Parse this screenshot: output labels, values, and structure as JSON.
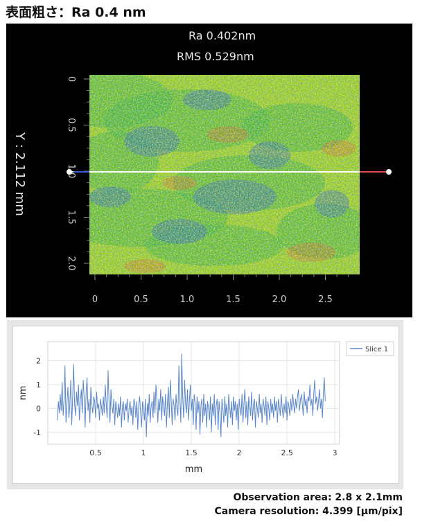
{
  "title": "表面粗さ：Ra 0.4 nm",
  "map": {
    "ra_label": "Ra 0.402nm",
    "rms_label": "RMS 0.529nm",
    "y_axis_title": "Y : 2.112 mm",
    "x_ticks": [
      "0",
      "0.5",
      "1.0",
      "1.5",
      "2.0",
      "2.5"
    ],
    "y_ticks": [
      "0",
      "0.5",
      "1.0",
      "1.5",
      "2.0"
    ],
    "colors": {
      "background": "#000000",
      "base": "#8fcc1e",
      "high": "#e2531f",
      "low": "#1f5fc4",
      "mid": "#2fae3b",
      "slice_line": "#ffffff"
    }
  },
  "chart_data": {
    "type": "line",
    "xlabel": "mm",
    "ylabel": "nm",
    "xlim": [
      0,
      3.05
    ],
    "ylim": [
      -1.5,
      2.8
    ],
    "x_ticks": [
      "0.5",
      "1",
      "1.5",
      "2",
      "2.5",
      "3"
    ],
    "y_ticks": [
      "2",
      "1",
      "0",
      "-1"
    ],
    "legend": "top-right",
    "series": [
      {
        "name": "Slice 1",
        "x_start": 0.1,
        "x_end": 2.9,
        "values": [
          -0.5,
          0.3,
          -0.2,
          0.6,
          -0.1,
          1.1,
          -0.3,
          0.4,
          1.8,
          -0.6,
          0.2,
          0.9,
          -0.4,
          0.1,
          1.2,
          -0.7,
          0.5,
          1.85,
          0.2,
          -0.3,
          0.7,
          0.1,
          1.0,
          -0.5,
          0.3,
          0.8,
          -0.2,
          1.2,
          0.4,
          -0.8,
          0.6,
          1.3,
          -0.1,
          0.4,
          -0.6,
          0.9,
          0.2,
          -0.2,
          0.5,
          0.3,
          -0.4,
          0.7,
          0.0,
          0.2,
          -0.5,
          0.4,
          0.1,
          -0.3,
          0.5,
          -0.2,
          1.0,
          0.2,
          -0.4,
          1.6,
          0.3,
          -0.6,
          0.8,
          0.1,
          -0.2,
          0.4,
          -0.7,
          0.3,
          0.0,
          -0.4,
          0.2,
          -0.3,
          0.5,
          -0.8,
          0.1,
          0.3,
          -0.5,
          0.2,
          -0.1,
          0.4,
          -0.6,
          0.0,
          0.3,
          -0.3,
          0.1,
          -0.7,
          0.4,
          0.2,
          -0.4,
          0.3,
          -0.9,
          0.1,
          0.5,
          -0.2,
          -0.8,
          0.3,
          0.0,
          -0.5,
          0.4,
          -1.2,
          0.2,
          -0.3,
          0.6,
          -0.6,
          0.1,
          0.3,
          -0.4,
          0.7,
          -0.2,
          1.0,
          0.3,
          -0.6,
          0.4,
          -0.1,
          0.8,
          -0.5,
          0.5,
          0.1,
          -0.3,
          0.6,
          -0.8,
          0.2,
          0.9,
          -0.4,
          1.2,
          0.3,
          -0.7,
          0.4,
          0.1,
          -0.5,
          0.6,
          0.0,
          -0.3,
          1.8,
          0.4,
          -0.6,
          2.3,
          0.5,
          -0.4,
          1.2,
          0.2,
          -0.2,
          0.8,
          -0.5,
          0.3,
          1.0,
          -0.1,
          0.4,
          -0.7,
          0.6,
          0.2,
          -0.9,
          0.5,
          -0.2,
          0.3,
          -1.1,
          0.1,
          0.4,
          -0.6,
          0.6,
          -0.3,
          0.2,
          -0.8,
          0.3,
          0.0,
          -0.5,
          0.5,
          -1.0,
          0.2,
          -0.3,
          0.6,
          -0.7,
          0.1,
          0.4,
          -0.9,
          0.3,
          -0.2,
          -1.2,
          0.4,
          0.0,
          -0.6,
          0.5,
          -0.3,
          0.2,
          -0.8,
          0.6,
          0.1,
          -0.4,
          0.3,
          -0.7,
          0.5,
          -0.1,
          0.3,
          -0.5,
          0.2,
          -0.9,
          0.4,
          0.0,
          -0.3,
          0.6,
          -0.6,
          0.2,
          0.8,
          -0.4,
          0.3,
          -0.7,
          0.5,
          0.1,
          -0.3,
          0.7,
          -0.5,
          0.2,
          0.4,
          -0.8,
          0.3,
          0.0,
          -0.4,
          0.6,
          -0.2,
          0.2,
          -0.6,
          0.4,
          0.1,
          -0.3,
          0.5,
          -0.7,
          0.3,
          0.0,
          -0.5,
          0.4,
          -0.2,
          0.2,
          -0.4,
          0.5,
          -0.1,
          0.3,
          -0.6,
          0.4,
          0.1,
          -0.3,
          0.6,
          0.0,
          -0.4,
          0.2,
          -0.2,
          0.5,
          -0.5,
          0.3,
          0.1,
          -0.3,
          0.4,
          -0.1,
          0.6,
          0.2,
          -0.2,
          0.4,
          0.0,
          0.5,
          0.8,
          -0.1,
          0.3,
          0.6,
          0.2,
          -0.3,
          0.7,
          0.1,
          0.4,
          -0.2,
          0.5,
          0.3,
          1.0,
          0.1,
          0.4,
          -0.3,
          0.6,
          1.2,
          0.2,
          0.5,
          -0.1,
          0.3,
          0.8,
          0.0,
          0.4,
          -0.4,
          0.6,
          1.3,
          0.3
        ]
      }
    ]
  },
  "footer": {
    "observation": "Observation area: 2.8 x 2.1mm",
    "resolution": "Camera resolution: 4.399 [μm/pix]"
  }
}
